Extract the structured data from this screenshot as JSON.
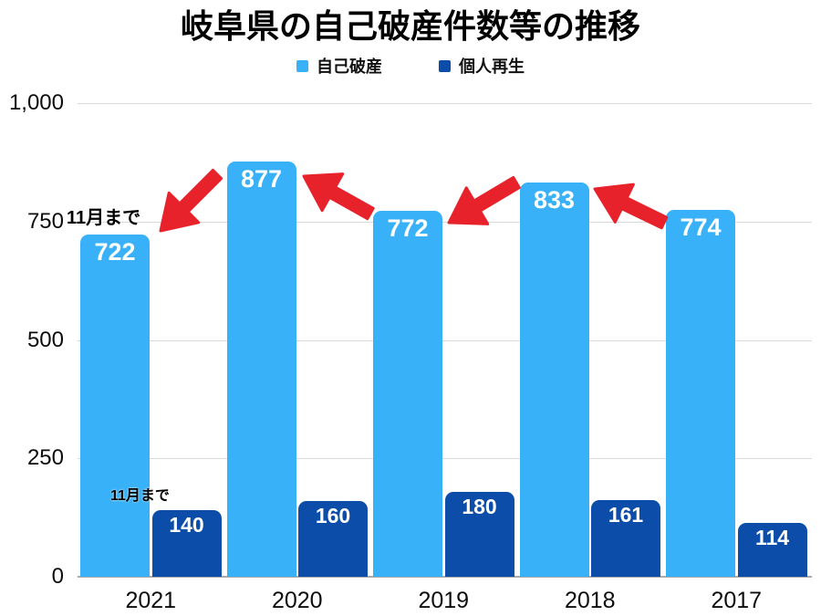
{
  "title": "岐阜県の自己破産件数等の推移",
  "legend": {
    "items": [
      {
        "label": "自己破産",
        "color": "#38B1F8",
        "icon": "light-blue-square"
      },
      {
        "label": "個人再生",
        "color": "#0B4DA8",
        "icon": "dark-blue-square"
      }
    ]
  },
  "chart_data": {
    "type": "bar",
    "title": "岐阜県の自己破産件数等の推移",
    "categories": [
      "2021",
      "2020",
      "2019",
      "2018",
      "2017"
    ],
    "series": [
      {
        "name": "自己破産",
        "color": "#38B1F8",
        "values": [
          722,
          877,
          772,
          833,
          774
        ]
      },
      {
        "name": "個人再生",
        "color": "#0B4DA8",
        "values": [
          140,
          160,
          180,
          161,
          114
        ]
      }
    ],
    "ylim": [
      0,
      1000
    ],
    "yticks": [
      {
        "value": 0,
        "label": "0"
      },
      {
        "value": 250,
        "label": "250"
      },
      {
        "value": 500,
        "label": "500"
      },
      {
        "value": 750,
        "label": "750"
      },
      {
        "value": 1000,
        "label": "1,000"
      }
    ],
    "grid": true,
    "legend_position": "top",
    "value_labels": "inside-top-white",
    "annotations": [
      {
        "text": "11月まで",
        "x": 73,
        "y": 229,
        "font_size": 20
      },
      {
        "text": "11月まで",
        "x": 121,
        "y": 536,
        "font_size": 16
      }
    ],
    "arrows": [
      {
        "tail": [
          238,
          191
        ],
        "tip": [
          176,
          253
        ]
      },
      {
        "tail": [
          406,
          234
        ],
        "tip": [
          333,
          193
        ]
      },
      {
        "tail": [
          566,
          200
        ],
        "tip": [
          492,
          244
        ]
      },
      {
        "tail": [
          728,
          244
        ],
        "tip": [
          652,
          207
        ]
      }
    ],
    "colors": {
      "arrow": "#E8222A",
      "gridline": "#D9D9D9",
      "axisline": "#ABABAB",
      "axis_text": "#0d0d0d",
      "bar_label_text": "#ffffff",
      "background": "#ffffff"
    }
  }
}
